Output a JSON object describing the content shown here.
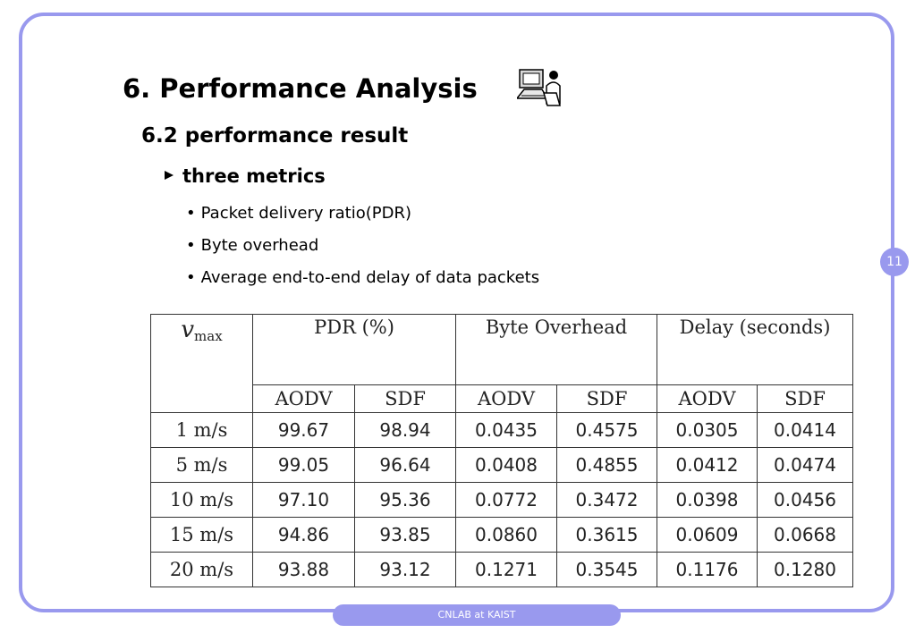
{
  "slide": {
    "title": "6. Performance Analysis",
    "subtitle": "6.2 performance result",
    "subheading": "three metrics",
    "page_number": "11",
    "footer": "CNLAB at KAIST",
    "accent_color": "#9999ee",
    "metrics": [
      "Packet delivery ratio(PDR)",
      "Byte overhead",
      "Average end-to-end delay of data packets"
    ]
  },
  "table": {
    "vmax_symbol": "v",
    "vmax_subscript": "max",
    "groups": [
      "PDR (%)",
      "Byte Overhead",
      "Delay (seconds)"
    ],
    "subcolumns": [
      "AODV",
      "SDF",
      "AODV",
      "SDF",
      "AODV",
      "SDF"
    ],
    "rows": [
      {
        "speed": "1 m/s",
        "values": [
          "99.67",
          "98.94",
          "0.0435",
          "0.4575",
          "0.0305",
          "0.0414"
        ]
      },
      {
        "speed": "5 m/s",
        "values": [
          "99.05",
          "96.64",
          "0.0408",
          "0.4855",
          "0.0412",
          "0.0474"
        ]
      },
      {
        "speed": "10 m/s",
        "values": [
          "97.10",
          "95.36",
          "0.0772",
          "0.3472",
          "0.0398",
          "0.0456"
        ]
      },
      {
        "speed": "15 m/s",
        "values": [
          "94.86",
          "93.85",
          "0.0860",
          "0.3615",
          "0.0609",
          "0.0668"
        ]
      },
      {
        "speed": "20 m/s",
        "values": [
          "93.88",
          "93.12",
          "0.1271",
          "0.3545",
          "0.1176",
          "0.1280"
        ]
      }
    ]
  }
}
